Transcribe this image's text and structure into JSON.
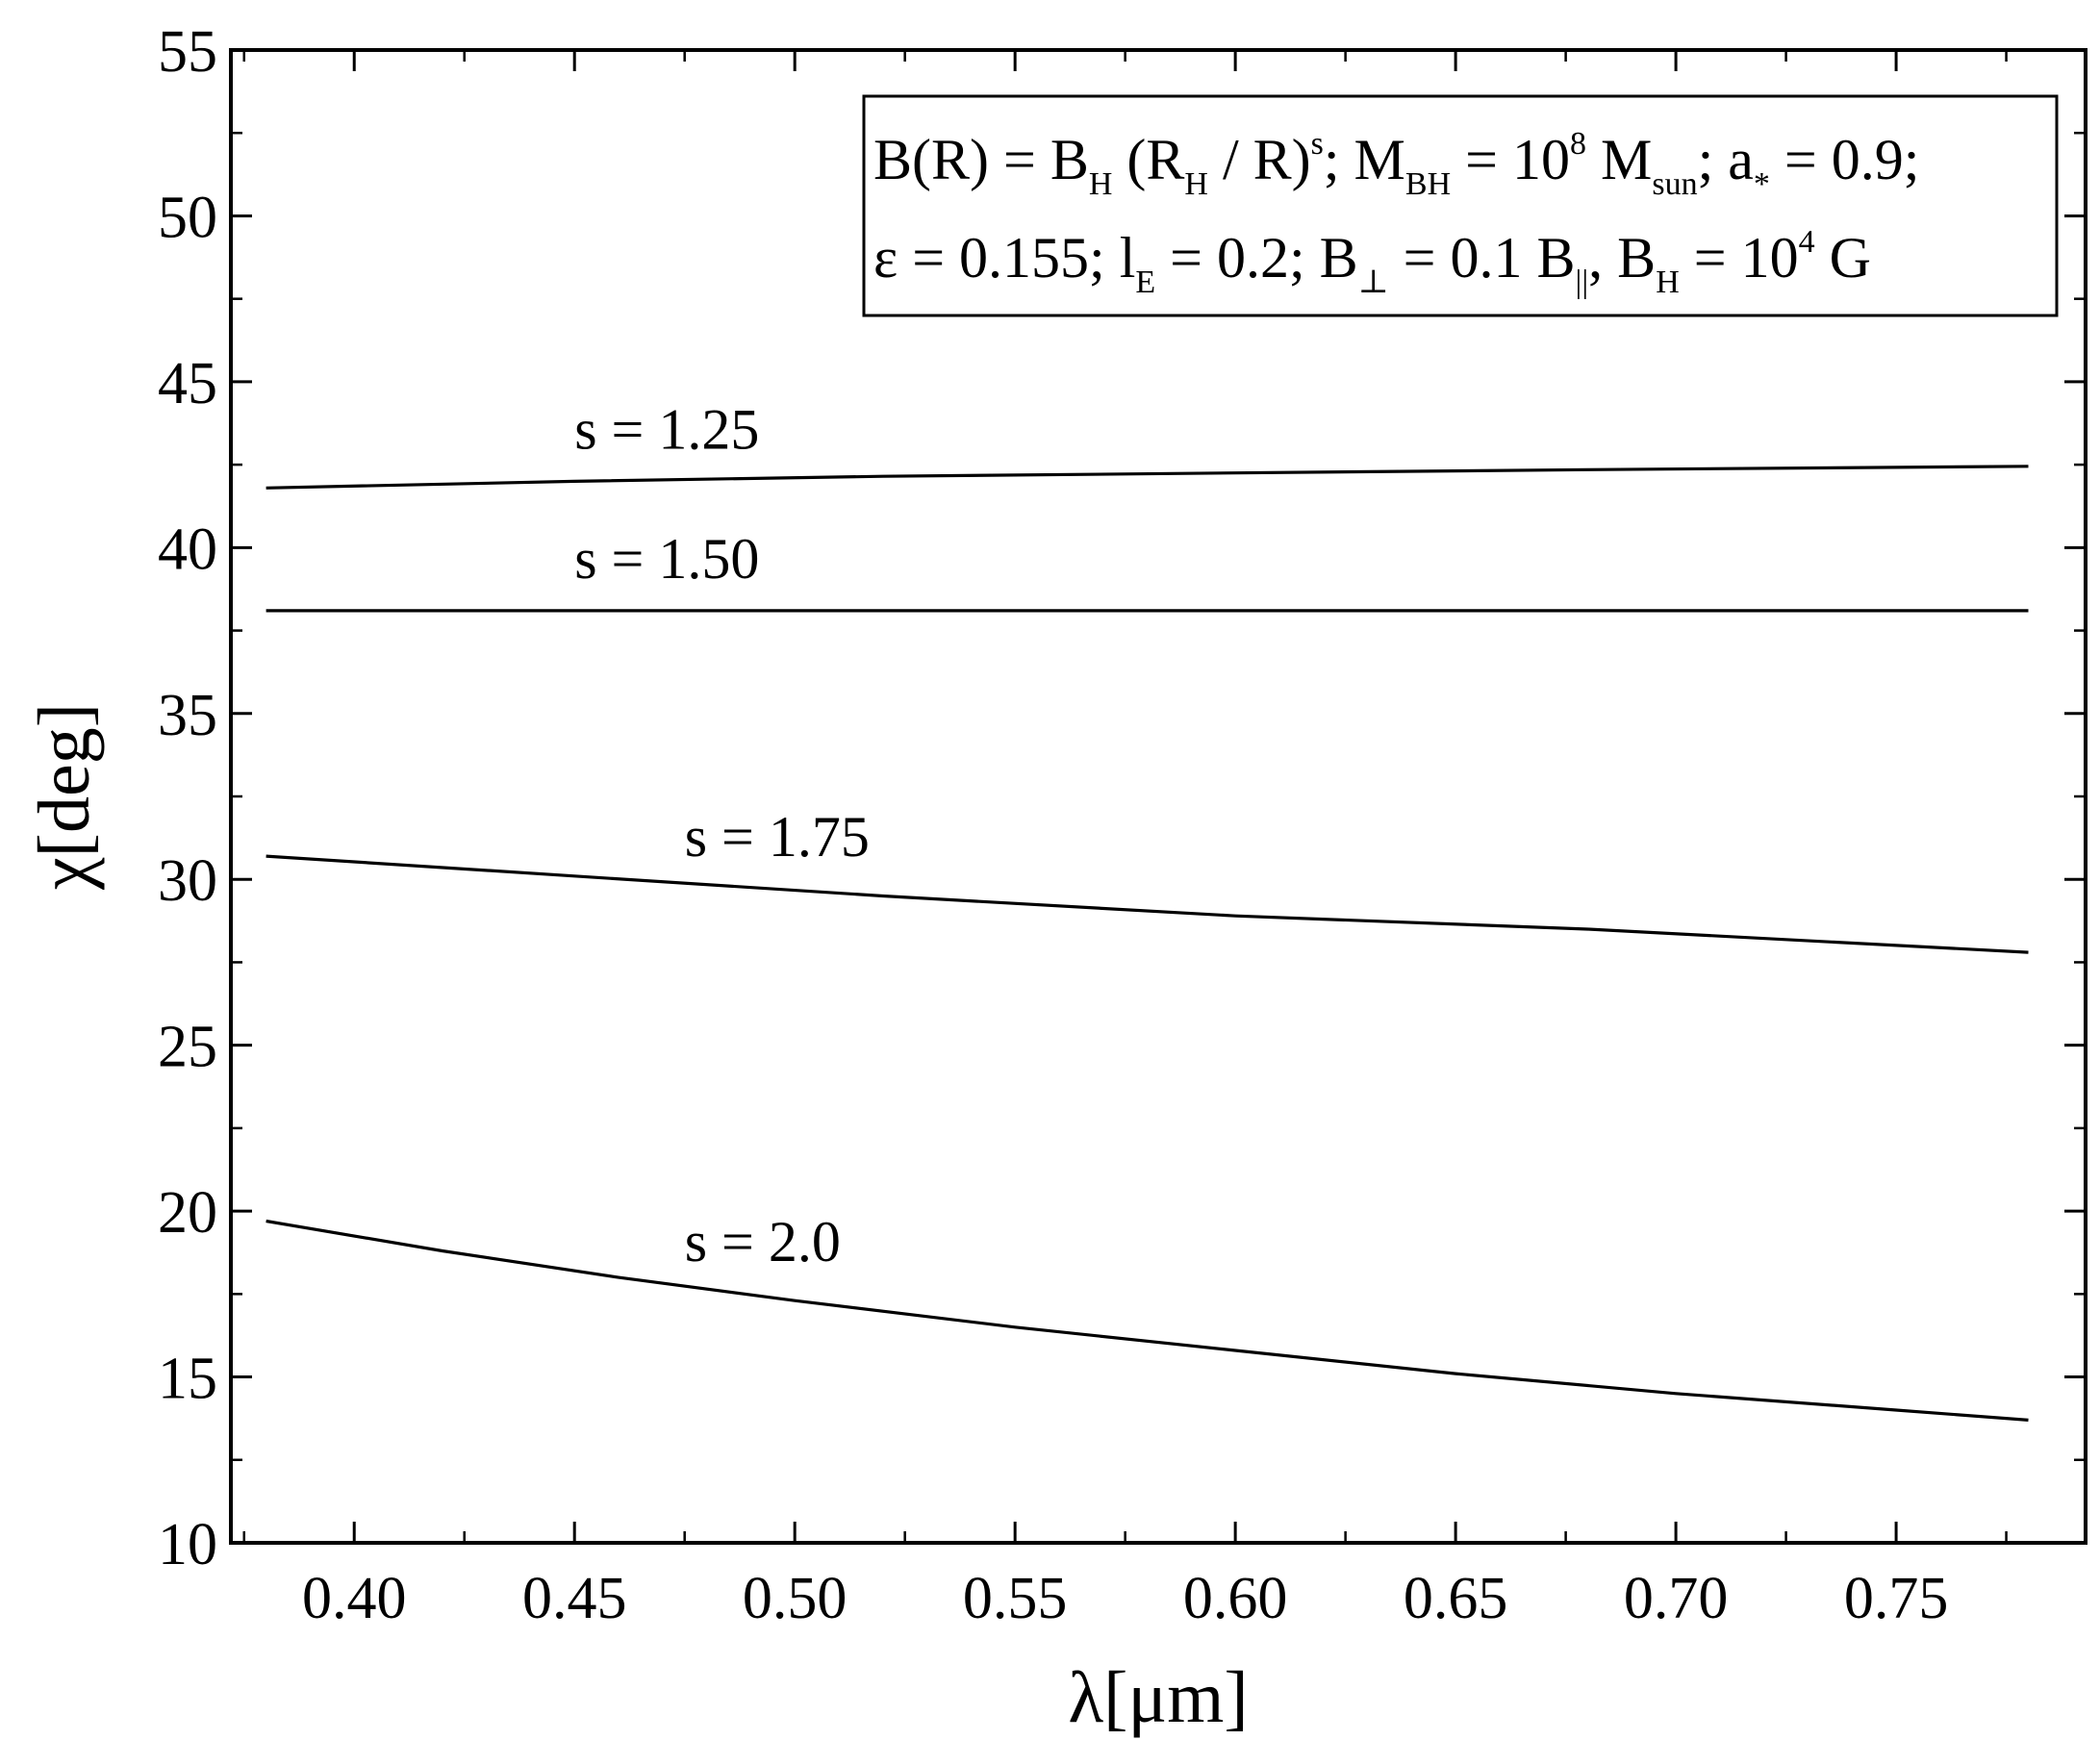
{
  "chart_data": {
    "type": "line",
    "title": "",
    "xlabel": "λ[μm]",
    "ylabel": "χ[deg]",
    "xlim": [
      0.372,
      0.793
    ],
    "ylim": [
      10,
      55
    ],
    "xticks": [
      "0.40",
      "0.45",
      "0.50",
      "0.55",
      "0.60",
      "0.65",
      "0.70",
      "0.75"
    ],
    "yticks": [
      "10",
      "15",
      "20",
      "25",
      "30",
      "35",
      "40",
      "45",
      "50",
      "55"
    ],
    "grid": false,
    "legend_position": "top-right",
    "legend": {
      "line1": {
        "t1": "B(R) = B",
        "t1_sub": "H",
        "t2": " (R",
        "t2_sub": "H",
        "t3": " / R)",
        "t3_sup": "s",
        "t4": "; M",
        "t4_sub": "BH",
        "t5": " = 10",
        "t5_sup": "8",
        "t6": " M",
        "t6_sub": "sun",
        "t7": "; a",
        "t7_sub": "*",
        "t8": " = 0.9;"
      },
      "line2": {
        "t1": "ε = 0.155; l",
        "t1_sub": "E",
        "t2": " = 0.2; B",
        "t2_sub": "⊥",
        "t3": " = 0.1 B",
        "t3_sub": "||",
        "t4": ", B",
        "t4_sub": "H",
        "t5": " = 10",
        "t5_sup": "4",
        "t6": " G"
      }
    },
    "series": [
      {
        "name": "s = 1.25",
        "x": [
          0.38,
          0.45,
          0.52,
          0.6,
          0.68,
          0.78
        ],
        "y": [
          41.8,
          42.0,
          42.15,
          42.25,
          42.35,
          42.45
        ]
      },
      {
        "name": "s = 1.50",
        "x": [
          0.38,
          0.78
        ],
        "y": [
          38.1,
          38.1
        ]
      },
      {
        "name": "s = 1.75",
        "x": [
          0.38,
          0.45,
          0.52,
          0.6,
          0.68,
          0.78
        ],
        "y": [
          30.7,
          30.1,
          29.5,
          28.9,
          28.5,
          27.8
        ]
      },
      {
        "name": "s = 2.0",
        "x": [
          0.38,
          0.42,
          0.46,
          0.5,
          0.55,
          0.6,
          0.65,
          0.7,
          0.75,
          0.78
        ],
        "y": [
          19.7,
          18.8,
          18.0,
          17.3,
          16.5,
          15.8,
          15.1,
          14.5,
          14.0,
          13.7
        ]
      }
    ]
  }
}
